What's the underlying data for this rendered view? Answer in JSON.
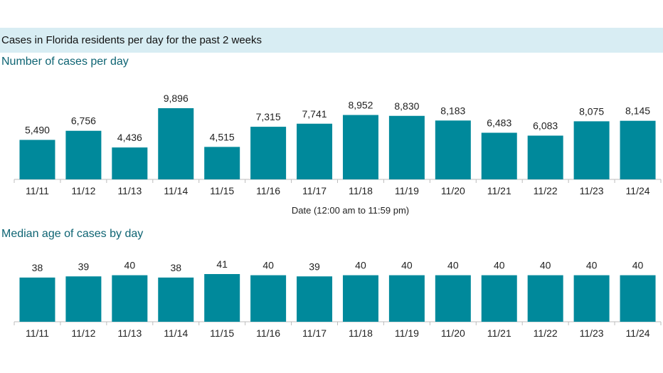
{
  "header": {
    "title": "Cases in Florida residents per day for the past 2 weeks"
  },
  "chart_data": [
    {
      "type": "bar",
      "title": "Number of cases per day",
      "xlabel": "Date (12:00 am to 11:59 pm)",
      "ylabel": "",
      "categories": [
        "11/11",
        "11/12",
        "11/13",
        "11/14",
        "11/15",
        "11/16",
        "11/17",
        "11/18",
        "11/19",
        "11/20",
        "11/21",
        "11/22",
        "11/23",
        "11/24"
      ],
      "values": [
        5490,
        6756,
        4436,
        9896,
        4515,
        7315,
        7741,
        8952,
        8830,
        8183,
        6483,
        6083,
        8075,
        8145
      ],
      "value_labels": [
        "5,490",
        "6,756",
        "4,436",
        "9,896",
        "4,515",
        "7,315",
        "7,741",
        "8,952",
        "8,830",
        "8,183",
        "6,483",
        "6,083",
        "8,075",
        "8,145"
      ],
      "ylim": [
        0,
        9896
      ],
      "grid": false,
      "legend": "none",
      "color": "#00899b"
    },
    {
      "type": "bar",
      "title": "Median age of cases by day",
      "xlabel": "",
      "ylabel": "",
      "categories": [
        "11/11",
        "11/12",
        "11/13",
        "11/14",
        "11/15",
        "11/16",
        "11/17",
        "11/18",
        "11/19",
        "11/20",
        "11/21",
        "11/22",
        "11/23",
        "11/24"
      ],
      "values": [
        38,
        39,
        40,
        38,
        41,
        40,
        39,
        40,
        40,
        40,
        40,
        40,
        40,
        40
      ],
      "value_labels": [
        "38",
        "39",
        "40",
        "38",
        "41",
        "40",
        "39",
        "40",
        "40",
        "40",
        "40",
        "40",
        "40",
        "40"
      ],
      "ylim": [
        0,
        41
      ],
      "grid": false,
      "legend": "none",
      "color": "#00899b"
    }
  ]
}
